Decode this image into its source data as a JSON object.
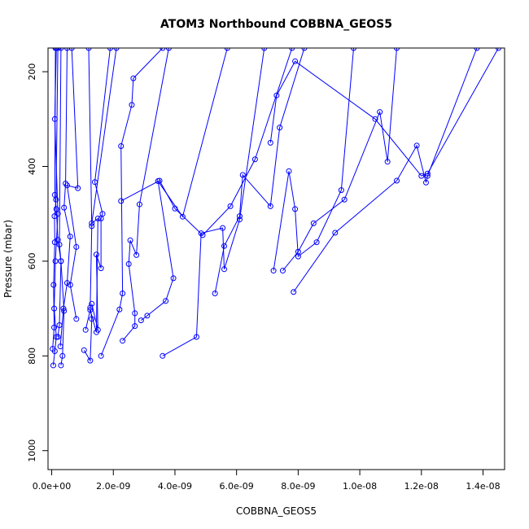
{
  "chart_data": {
    "type": "line",
    "title": "ATOM3 Northbound COBBNA_GEOS5",
    "xlabel": "COBBNA_GEOS5",
    "ylabel": "Pressure (mbar)",
    "xlim": [
      -1.2e-10,
      1.47e-08
    ],
    "ylim": [
      1040,
      150
    ],
    "y_reversed": true,
    "x_ticks": [
      0,
      2e-09,
      4e-09,
      6e-09,
      8e-09,
      1e-08,
      1.2e-08,
      1.4e-08
    ],
    "x_tick_labels": [
      "0.0e+00",
      "2.0e-09",
      "4.0e-09",
      "6.0e-09",
      "8.0e-09",
      "1.0e-08",
      "1.2e-08",
      "1.4e-08"
    ],
    "y_ticks": [
      200,
      400,
      600,
      800,
      1000
    ],
    "y_tick_labels": [
      "200",
      "400",
      "600",
      "800",
      "1000"
    ],
    "grid": false,
    "legend": "none",
    "series_color": "#0000ff",
    "series": [
      {
        "x": [
          5e-11,
          1e-10,
          1.5e-10,
          8e-11,
          1.2e-10,
          2e-10,
          1e-10,
          1.5e-10
        ],
        "y": [
          820,
          790,
          760,
          700,
          600,
          500,
          300,
          150
        ]
      },
      {
        "x": [
          3e-11,
          8e-11,
          6e-11,
          1e-10,
          9e-11,
          1.4e-10,
          2e-10
        ],
        "y": [
          785,
          740,
          650,
          560,
          505,
          470,
          150
        ]
      },
      {
        "x": [
          2e-10,
          2.5e-10,
          3e-10,
          2e-10,
          1.5e-10,
          1e-10,
          1.2e-10
        ],
        "y": [
          760,
          735,
          600,
          555,
          490,
          460,
          150
        ]
      },
      {
        "x": [
          3e-10,
          3.5e-10,
          4e-10,
          3e-10,
          2.5e-10,
          3e-10
        ],
        "y": [
          820,
          800,
          705,
          600,
          565,
          150
        ]
      },
      {
        "x": [
          2.8e-10,
          3.8e-10,
          5e-10,
          6e-10,
          4e-10,
          4.5e-10,
          5e-10
        ],
        "y": [
          780,
          700,
          646,
          548,
          487,
          436,
          150
        ]
      },
      {
        "x": [
          8e-10,
          6e-10,
          8e-10,
          5e-10,
          8.5e-10,
          6.5e-10
        ],
        "y": [
          722,
          650,
          570,
          440,
          446,
          150
        ]
      },
      {
        "x": [
          1.05e-09,
          1.25e-09,
          1.3e-09,
          1.25e-09,
          1.3e-09,
          1.2e-09
        ],
        "y": [
          788,
          810,
          722,
          698,
          526,
          150
        ]
      },
      {
        "x": [
          1.3e-09,
          1.5e-09,
          1.45e-09,
          1.6e-09,
          1.6e-09,
          1.65e-09,
          1.4e-09,
          1.9e-09
        ],
        "y": [
          690,
          745,
          586,
          615,
          510,
          500,
          433,
          150
        ]
      },
      {
        "x": [
          1.1e-09,
          1.25e-09,
          1.45e-09,
          1.5e-09,
          1.3e-09,
          2.1e-09
        ],
        "y": [
          745,
          703,
          750,
          510,
          520,
          150
        ]
      },
      {
        "x": [
          1.6e-09,
          2.2e-09,
          2.3e-09,
          2.25e-09,
          2.6e-09,
          2.65e-09,
          3.6e-09
        ],
        "y": [
          800,
          702,
          668,
          357,
          270,
          214,
          150
        ]
      },
      {
        "x": [
          2.3e-09,
          2.7e-09,
          2.7e-09,
          2.5e-09,
          2.55e-09,
          2.75e-09,
          2.85e-09,
          3.8e-09
        ],
        "y": [
          768,
          737,
          710,
          606,
          556,
          587,
          480,
          150
        ]
      },
      {
        "x": [
          2.9e-09,
          3.1e-09,
          3.7e-09,
          3.95e-09,
          3.45e-09,
          4.25e-09,
          5.7e-09
        ],
        "y": [
          725,
          715,
          684,
          636,
          431,
          506,
          150
        ]
      },
      {
        "x": [
          3.6e-09,
          4.7e-09,
          4.85e-09,
          5.55e-09,
          5.6e-09,
          6.1e-09,
          6.9e-09
        ],
        "y": [
          800,
          760,
          541,
          530,
          617,
          512,
          150
        ]
      },
      {
        "x": [
          2.25e-09,
          3.5e-09,
          4e-09,
          4.9e-09,
          5.8e-09,
          6.6e-09,
          7.8e-09
        ],
        "y": [
          473,
          430,
          489,
          545,
          484,
          385,
          150
        ]
      },
      {
        "x": [
          5.3e-09,
          5.6e-09,
          6.1e-09,
          6.2e-09,
          7.1e-09,
          7.4e-09,
          8.2e-09
        ],
        "y": [
          668,
          568,
          505,
          418,
          484,
          318,
          150
        ]
      },
      {
        "x": [
          7.2e-09,
          7.7e-09,
          7.9e-09,
          8e-09,
          8.6e-09,
          9.4e-09,
          9.8e-09
        ],
        "y": [
          620,
          410,
          490,
          590,
          560,
          450,
          150
        ]
      },
      {
        "x": [
          7.5e-09,
          8e-09,
          8.5e-09,
          9.5e-09,
          1.065e-08,
          1.09e-08,
          1.12e-08
        ],
        "y": [
          620,
          580,
          520,
          470,
          285,
          390,
          150
        ]
      },
      {
        "x": [
          7.85e-09,
          9.2e-09,
          1.12e-08,
          1.185e-08,
          1.215e-08,
          1.22e-08,
          1.38e-08
        ],
        "y": [
          665,
          540,
          430,
          356,
          434,
          420,
          150
        ]
      },
      {
        "x": [
          7.1e-09,
          7.3e-09,
          7.9e-09,
          1.05e-08,
          1.2e-08,
          1.22e-08,
          1.45e-08
        ],
        "y": [
          350,
          250,
          178,
          300,
          420,
          415,
          150
        ]
      }
    ]
  }
}
